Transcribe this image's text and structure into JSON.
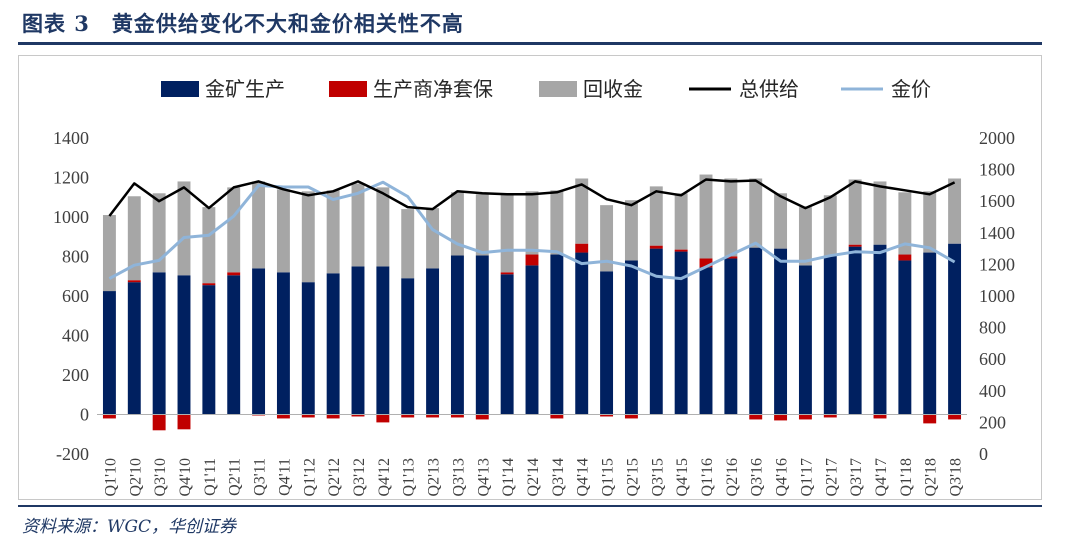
{
  "header": {
    "title": "图表 3　黄金供给变化不大和金价相关性不高"
  },
  "footer": {
    "source": "资料来源：WGC，华创证券"
  },
  "colors": {
    "mine": "#002060",
    "hedge": "#c00000",
    "recycle": "#a6a6a6",
    "total": "#000000",
    "price": "#8fb4d9",
    "accent": "#1f3864"
  },
  "chart_data": {
    "type": "bar",
    "stacked": true,
    "legend_position": "top",
    "grid": false,
    "categories": [
      "Q1'10",
      "Q2'10",
      "Q3'10",
      "Q4'10",
      "Q1'11",
      "Q2'11",
      "Q3'11",
      "Q4'11",
      "Q1'12",
      "Q2'12",
      "Q3'12",
      "Q4'12",
      "Q1'13",
      "Q2'13",
      "Q3'13",
      "Q4'13",
      "Q1'14",
      "Q2'14",
      "Q3'14",
      "Q4'14",
      "Q1'15",
      "Q2'15",
      "Q3'15",
      "Q4'15",
      "Q1'16",
      "Q2'16",
      "Q3'16",
      "Q4'16",
      "Q1'17",
      "Q2'17",
      "Q3'17",
      "Q4'17",
      "Q1'18",
      "Q2'18",
      "Q3'18"
    ],
    "y_left": {
      "min": -200,
      "max": 1400,
      "ticks": [
        -200,
        0,
        200,
        400,
        600,
        800,
        1000,
        1200,
        1400
      ]
    },
    "y_right": {
      "min": 0,
      "max": 2000,
      "ticks": [
        0,
        200,
        400,
        600,
        800,
        1000,
        1200,
        1400,
        1600,
        1800,
        2000
      ]
    },
    "series": [
      {
        "name": "金矿生产",
        "kind": "bar",
        "axis": "left",
        "values": [
          625,
          670,
          720,
          705,
          655,
          705,
          740,
          720,
          670,
          715,
          750,
          750,
          690,
          740,
          805,
          805,
          710,
          755,
          810,
          820,
          725,
          780,
          840,
          825,
          745,
          790,
          845,
          840,
          755,
          805,
          850,
          860,
          780,
          820,
          865
        ]
      },
      {
        "name": "生产商净套保",
        "kind": "bar",
        "axis": "left",
        "values": [
          -20,
          10,
          -80,
          -75,
          10,
          15,
          -5,
          -20,
          -15,
          -20,
          -10,
          -40,
          -15,
          -15,
          -15,
          -25,
          10,
          55,
          -20,
          45,
          -10,
          -20,
          15,
          10,
          45,
          10,
          -25,
          -30,
          -25,
          -15,
          10,
          -20,
          30,
          -45,
          -25
        ]
      },
      {
        "name": "回收金",
        "kind": "bar",
        "axis": "left",
        "values": [
          385,
          425,
          400,
          475,
          385,
          430,
          440,
          420,
          460,
          420,
          420,
          400,
          350,
          305,
          320,
          310,
          395,
          320,
          325,
          330,
          335,
          305,
          300,
          285,
          425,
          395,
          350,
          280,
          295,
          305,
          330,
          320,
          315,
          310,
          330
        ]
      },
      {
        "name": "总供给",
        "kind": "line",
        "axis": "left",
        "values": [
          1005,
          1170,
          1080,
          1150,
          1045,
          1150,
          1180,
          1140,
          1110,
          1130,
          1180,
          1120,
          1050,
          1040,
          1130,
          1120,
          1115,
          1115,
          1125,
          1165,
          1090,
          1060,
          1130,
          1110,
          1190,
          1180,
          1185,
          1105,
          1045,
          1100,
          1180,
          1155,
          1135,
          1115,
          1175
        ]
      },
      {
        "name": "金价",
        "kind": "line",
        "axis": "right",
        "values": [
          1110,
          1195,
          1225,
          1370,
          1385,
          1505,
          1700,
          1690,
          1690,
          1610,
          1650,
          1720,
          1630,
          1420,
          1330,
          1275,
          1290,
          1290,
          1280,
          1205,
          1220,
          1190,
          1125,
          1110,
          1185,
          1260,
          1335,
          1220,
          1220,
          1255,
          1280,
          1275,
          1330,
          1305,
          1215
        ]
      }
    ]
  }
}
